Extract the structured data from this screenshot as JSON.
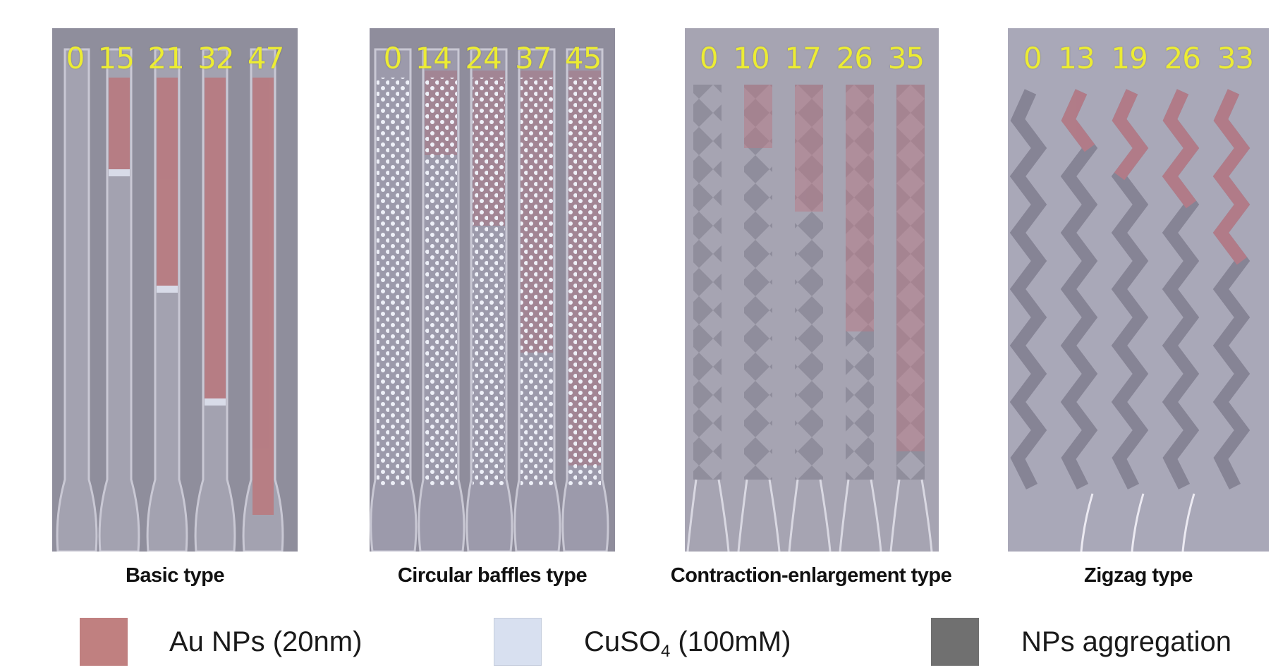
{
  "panels": [
    {
      "caption": "Basic type",
      "times": [
        "0",
        "15",
        "21",
        "32",
        "47"
      ]
    },
    {
      "caption": "Circular baffles type",
      "times": [
        "0",
        "14",
        "24",
        "37",
        "45"
      ]
    },
    {
      "caption": "Contraction-enlargement type",
      "times": [
        "0",
        "10",
        "17",
        "26",
        "35"
      ]
    },
    {
      "caption": "Zigzag type",
      "times": [
        "0",
        "13",
        "19",
        "26",
        "33"
      ]
    }
  ],
  "legend": [
    {
      "label": "Au NPs (20nm)",
      "color": "#c08080"
    },
    {
      "label_main": "CuSO",
      "label_sub": "4",
      "label_rest": " (100mM)",
      "color": "#d8e0f0"
    },
    {
      "label": "NPs aggregation",
      "color": "#707070"
    }
  ],
  "colors": {
    "time_label": "#ecec33",
    "au_np_fill": "#c08080",
    "cuso4_fill": "#d8e0f0",
    "aggregation_fill": "#707070",
    "panel_background": "#9a98a8"
  }
}
